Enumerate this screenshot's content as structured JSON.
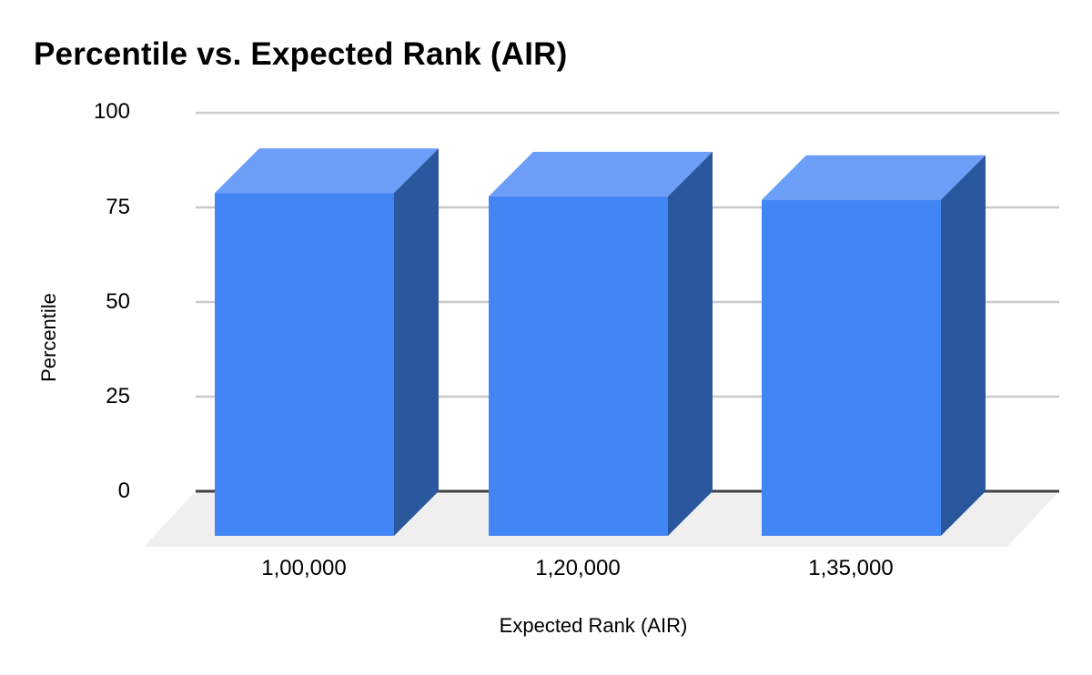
{
  "chart_data": {
    "type": "bar",
    "subtype": "3d-column",
    "title": "Percentile vs. Expected Rank (AIR)",
    "xlabel": "Expected Rank (AIR)",
    "ylabel": "Percentile",
    "categories": [
      "1,00,000",
      "1,20,000",
      "1,35,000"
    ],
    "values": [
      90.6,
      89.7,
      88.8
    ],
    "series_name": "Percentile",
    "ylim": [
      0,
      100
    ],
    "yticks": [
      0,
      25,
      50,
      75,
      100
    ],
    "ytick_labels": [
      "0",
      "25",
      "50",
      "75",
      "100"
    ],
    "grid": true,
    "legend": "none",
    "colors": {
      "bar_front": "#4285f4",
      "bar_top": "#6d9ef7",
      "bar_side": "#2b579e",
      "gridline": "#cacaca",
      "zero_line": "#424242",
      "floor": "#efefef",
      "text": "#000000",
      "background": "#ffffff"
    }
  }
}
